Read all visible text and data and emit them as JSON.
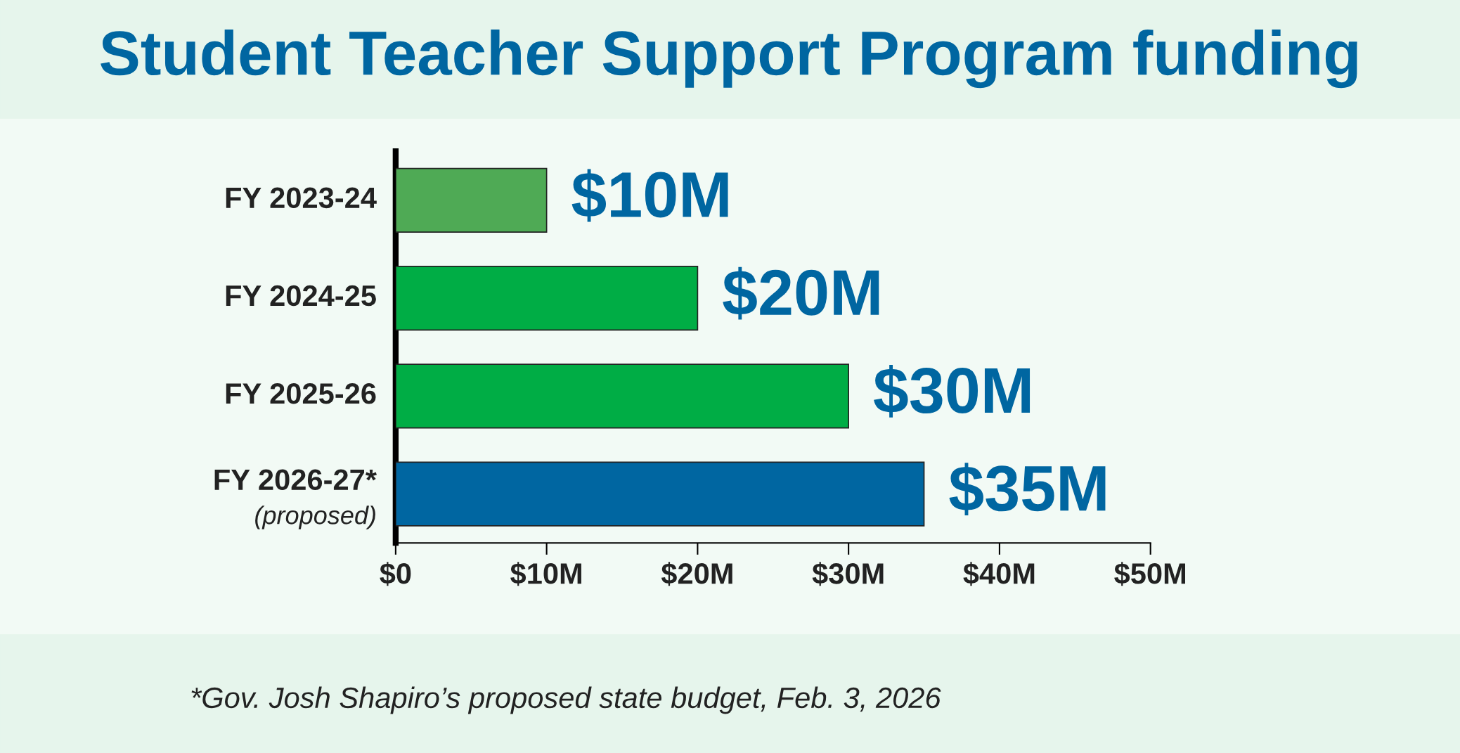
{
  "chart_data": {
    "type": "bar",
    "orientation": "horizontal",
    "title": "Student Teacher Support Program funding",
    "categories": [
      "FY 2023-24",
      "FY 2024-25",
      "FY 2025-26",
      "FY 2026-27*\n(proposed)"
    ],
    "values": [
      10,
      20,
      30,
      35
    ],
    "colors": [
      "#4faa55",
      "#00ad45",
      "#00ad45",
      "#0066a1"
    ],
    "value_labels": [
      "$10M",
      "$20M",
      "$30M",
      "$35M"
    ],
    "xlim": [
      0,
      50
    ],
    "xticks": [
      {
        "value": 0,
        "label": "$0"
      },
      {
        "value": 10,
        "label": "$10M"
      },
      {
        "value": 20,
        "label": "$20M"
      },
      {
        "value": 30,
        "label": "$30M"
      },
      {
        "value": 40,
        "label": "$40M"
      },
      {
        "value": 50,
        "label": "$50M"
      }
    ],
    "grid": false,
    "legend": false,
    "annotations": [
      "*Gov. Josh Shapiro’s proposed state budget, Feb. 3, 2026"
    ]
  }
}
